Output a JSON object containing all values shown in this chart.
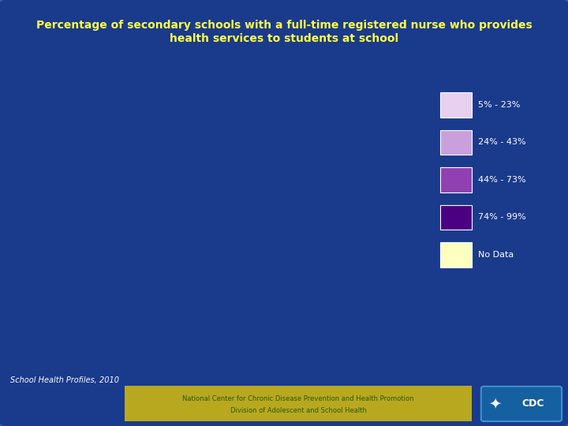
{
  "title_line1": "Percentage of secondary schools with a full-time registered nurse who provides",
  "title_line2": "health services to students at school",
  "title_color": "#FFFF44",
  "background_color": "#1a3a8c",
  "legend_labels": [
    "5% - 23%",
    "24% - 43%",
    "44% - 73%",
    "74% - 99%",
    "No Data"
  ],
  "legend_colors": [
    "#e8d0f0",
    "#c9a0dc",
    "#9040b0",
    "#4b0082",
    "#ffffc0"
  ],
  "footer_text1": "National Center for Chronic Disease Prevention and Health Promotion",
  "footer_text2": "Division of Adolescent and School Health",
  "footer_bg": "#b8a820",
  "footer_text_color": "#2a5a0a",
  "source_text": "School Health Profiles, 2010",
  "source_color": "#ffffff",
  "state_colors": {
    "Alabama": "#9040b0",
    "Alaska": "#e8d0f0",
    "Arizona": "#c9a0dc",
    "Arkansas": "#9040b0",
    "California": "#e8d0f0",
    "Colorado": "#e8d0f0",
    "Connecticut": "#4b0082",
    "Delaware": "#4b0082",
    "Florida": "#c9a0dc",
    "Georgia": "#c9a0dc",
    "Hawaii": "#e8d0f0",
    "Idaho": "#e8d0f0",
    "Illinois": "#ffffc0",
    "Indiana": "#9040b0",
    "Iowa": "#9040b0",
    "Kansas": "#c9a0dc",
    "Kentucky": "#9040b0",
    "Louisiana": "#c9a0dc",
    "Maine": "#4b0082",
    "Maryland": "#4b0082",
    "Massachusetts": "#4b0082",
    "Michigan": "#c9a0dc",
    "Minnesota": "#c9a0dc",
    "Mississippi": "#c9a0dc",
    "Missouri": "#4b0082",
    "Montana": "#e8d0f0",
    "Nebraska": "#c9a0dc",
    "Nevada": "#e8d0f0",
    "New Hampshire": "#4b0082",
    "New Jersey": "#4b0082",
    "New Mexico": "#c9a0dc",
    "New York": "#4b0082",
    "North Carolina": "#c9a0dc",
    "North Dakota": "#e8d0f0",
    "Ohio": "#9040b0",
    "Oklahoma": "#9040b0",
    "Oregon": "#e8d0f0",
    "Pennsylvania": "#4b0082",
    "Rhode Island": "#4b0082",
    "South Carolina": "#4b0082",
    "South Dakota": "#e8d0f0",
    "Tennessee": "#9040b0",
    "Texas": "#4b0082",
    "Utah": "#e8d0f0",
    "Vermont": "#4b0082",
    "Virginia": "#4b0082",
    "Washington": "#e8d0f0",
    "West Virginia": "#9040b0",
    "Wisconsin": "#c9a0dc",
    "Wyoming": "#e8d0f0",
    "District of Columbia": "#4b0082"
  }
}
